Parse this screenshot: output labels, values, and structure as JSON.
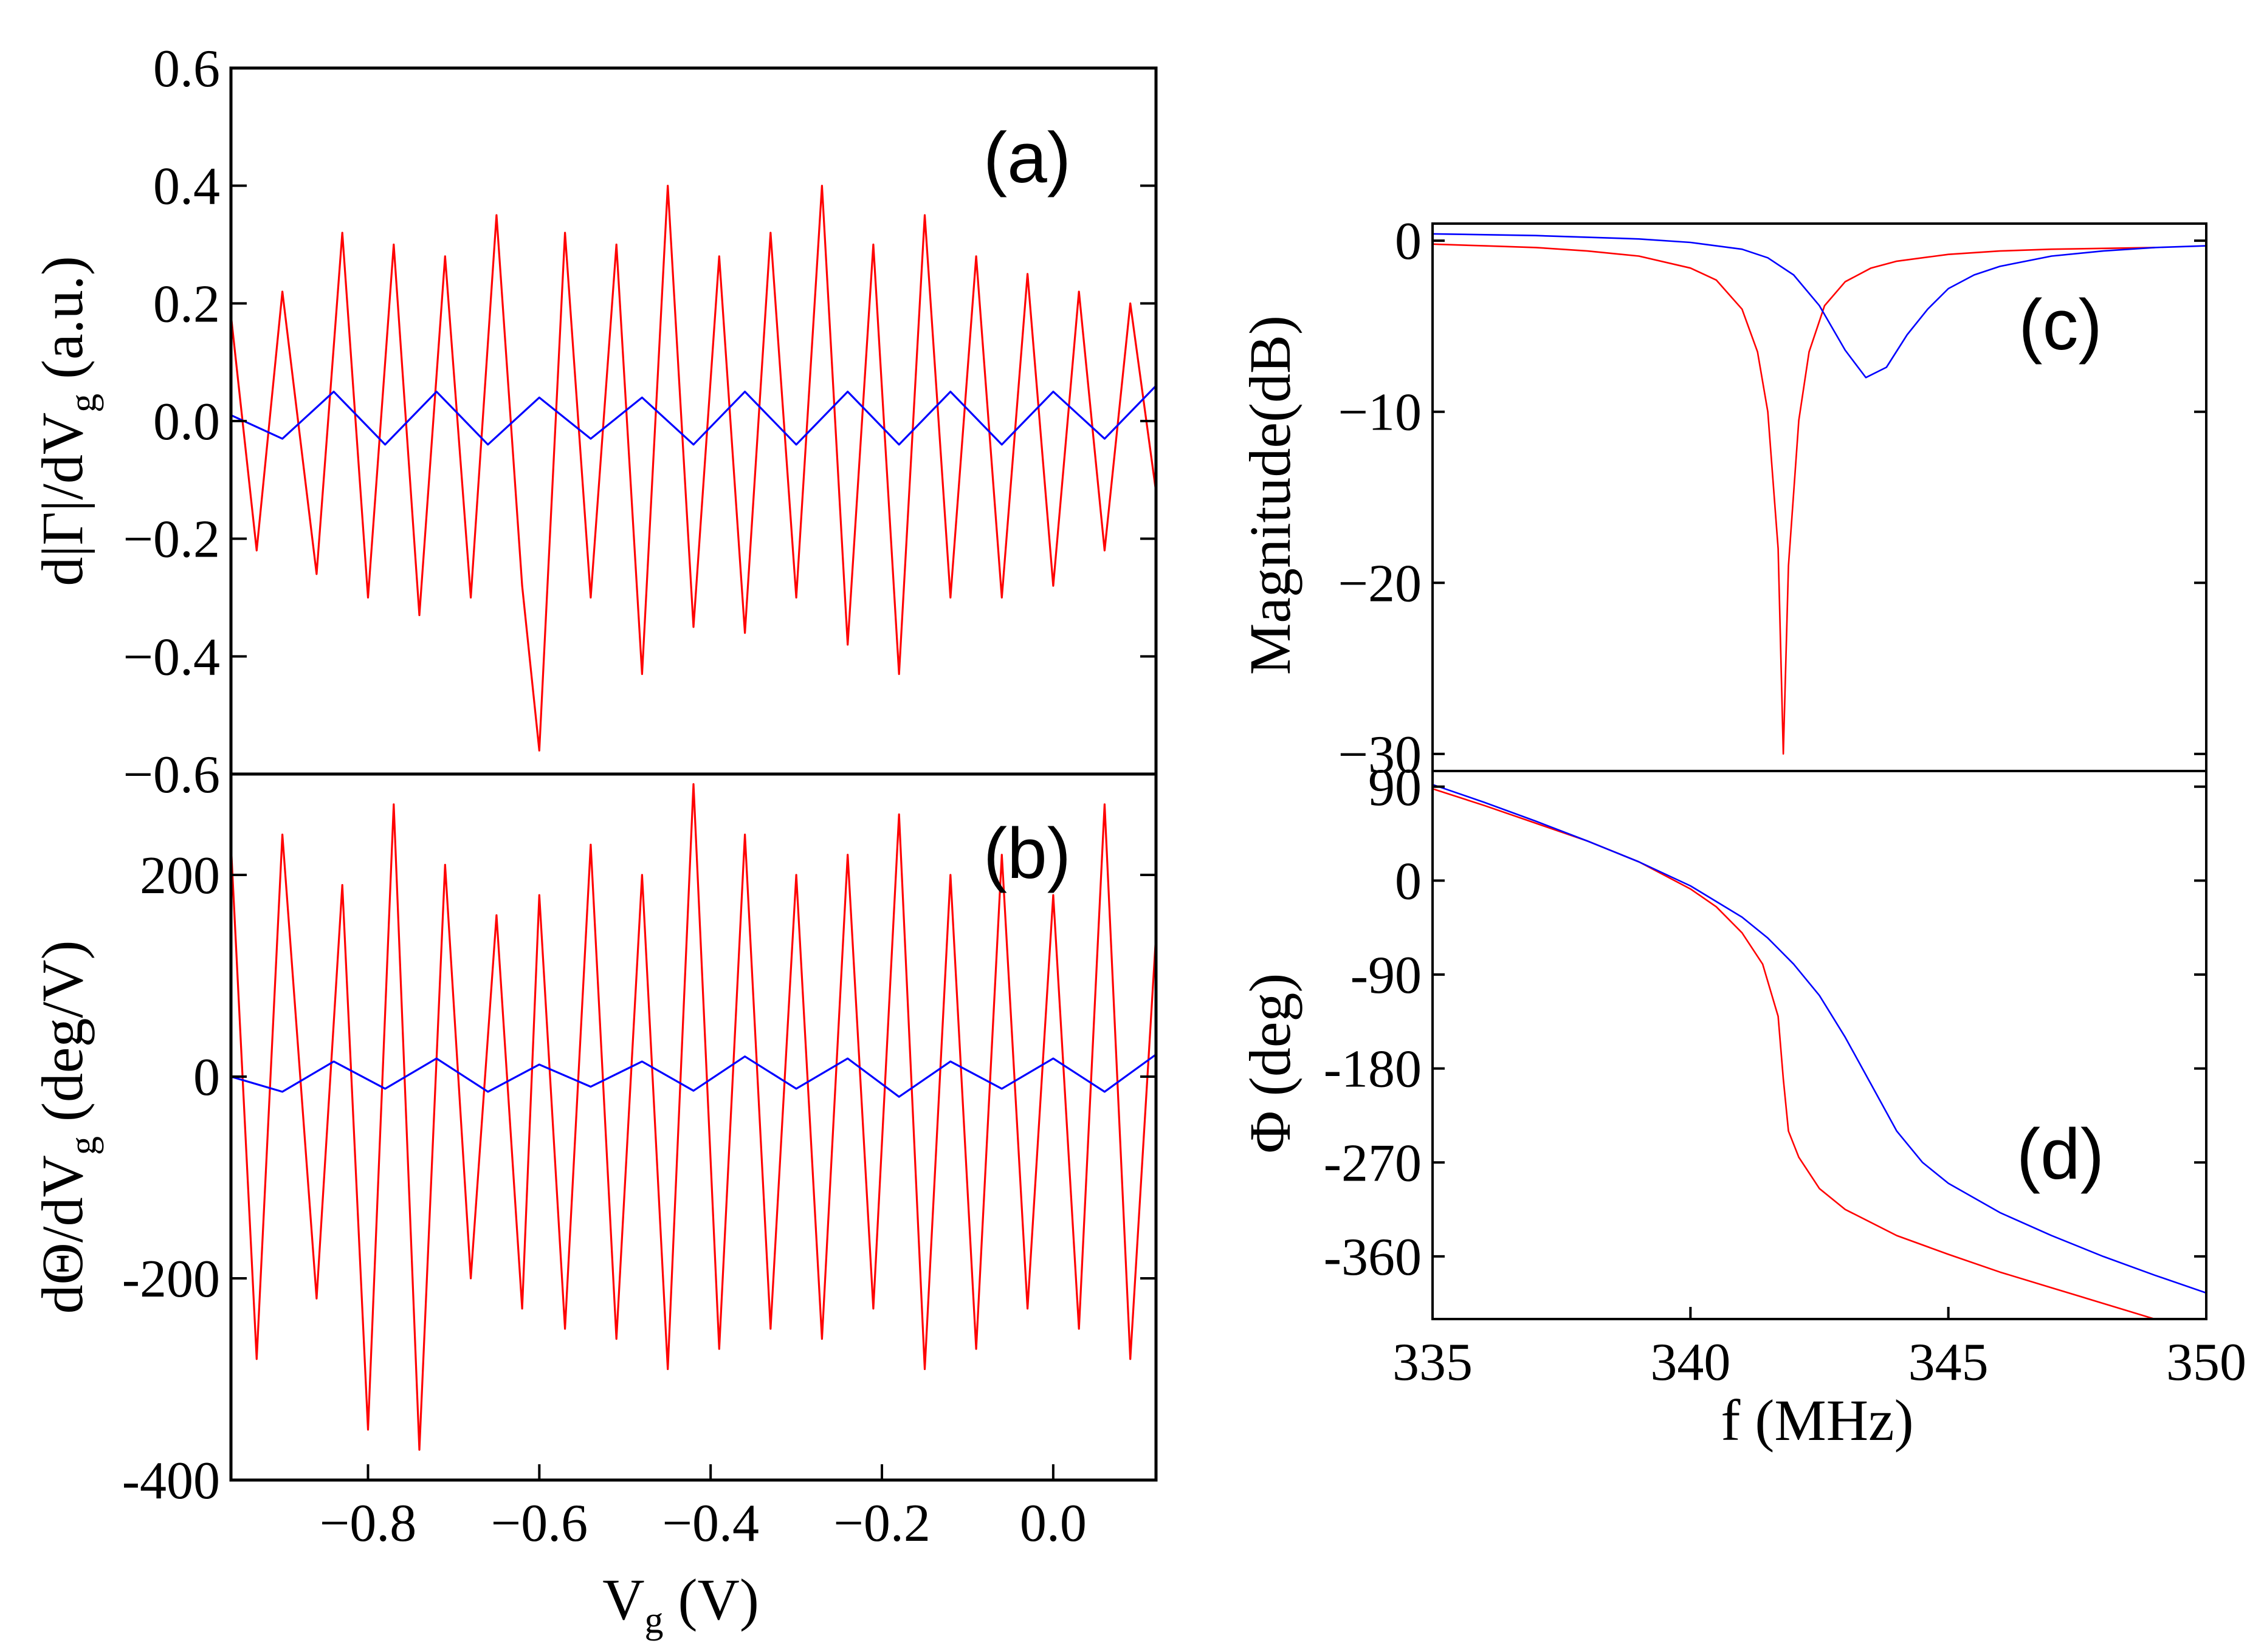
{
  "chart_data": [
    {
      "panel": "(a)",
      "type": "line",
      "ylabel": "d|Γ|/dVg (a.u.)",
      "ylabel_parts": {
        "main": "d|Γ|/dV",
        "sub": "g",
        "tail": " (a.u.)"
      },
      "xlim": [
        -0.96,
        0.12
      ],
      "ylim": [
        -0.6,
        0.6
      ],
      "yticks": [
        -0.6,
        -0.4,
        -0.2,
        0.0,
        0.2,
        0.4,
        0.6
      ],
      "ytick_labels": [
        "−0.6",
        "−0.4",
        "−0.2",
        "0.0",
        "0.2",
        "0.4",
        "0.6"
      ],
      "series": [
        {
          "name": "red",
          "color": "#ff0000",
          "description": "oscillation amplitude ~±0.3, extremes 0.40 and −0.56",
          "x": [
            -0.96,
            -0.93,
            -0.9,
            -0.86,
            -0.83,
            -0.8,
            -0.77,
            -0.74,
            -0.71,
            -0.68,
            -0.65,
            -0.62,
            -0.6,
            -0.57,
            -0.54,
            -0.51,
            -0.48,
            -0.45,
            -0.42,
            -0.39,
            -0.36,
            -0.33,
            -0.3,
            -0.27,
            -0.24,
            -0.21,
            -0.18,
            -0.15,
            -0.12,
            -0.09,
            -0.06,
            -0.03,
            0.0,
            0.03,
            0.06,
            0.09,
            0.12
          ],
          "y": [
            0.18,
            -0.22,
            0.22,
            -0.26,
            0.32,
            -0.3,
            0.3,
            -0.33,
            0.28,
            -0.3,
            0.35,
            -0.28,
            -0.56,
            0.32,
            -0.3,
            0.3,
            -0.43,
            0.4,
            -0.35,
            0.28,
            -0.36,
            0.32,
            -0.3,
            0.4,
            -0.38,
            0.3,
            -0.43,
            0.35,
            -0.3,
            0.28,
            -0.3,
            0.25,
            -0.28,
            0.22,
            -0.22,
            0.2,
            -0.12
          ]
        },
        {
          "name": "blue",
          "color": "#0000ff",
          "description": "small oscillation ~±0.06 around 0",
          "x": [
            -0.96,
            -0.9,
            -0.84,
            -0.78,
            -0.72,
            -0.66,
            -0.6,
            -0.54,
            -0.48,
            -0.42,
            -0.36,
            -0.3,
            -0.24,
            -0.18,
            -0.12,
            -0.06,
            0.0,
            0.06,
            0.12
          ],
          "y": [
            0.01,
            -0.03,
            0.05,
            -0.04,
            0.05,
            -0.04,
            0.04,
            -0.03,
            0.04,
            -0.04,
            0.05,
            -0.04,
            0.05,
            -0.04,
            0.05,
            -0.04,
            0.05,
            -0.03,
            0.06
          ]
        }
      ]
    },
    {
      "panel": "(b)",
      "type": "line",
      "ylabel": "dΘ/dVg (deg/V)",
      "ylabel_parts": {
        "main": "dΘ/dV",
        "sub": "g",
        "tail": " (deg/V)"
      },
      "xlabel": "Vg (V)",
      "xlabel_parts": {
        "main": "V",
        "sub": "g",
        "tail": " (V)"
      },
      "xlim": [
        -0.96,
        0.12
      ],
      "ylim": [
        -400,
        300
      ],
      "yticks": [
        -400,
        -200,
        0,
        200
      ],
      "ytick_labels": [
        "-400",
        "-200",
        "0",
        "200"
      ],
      "xticks": [
        -0.8,
        -0.6,
        -0.4,
        -0.2,
        0.0
      ],
      "xtick_labels": [
        "−0.8",
        "−0.6",
        "−0.4",
        "−0.2",
        "0.0"
      ],
      "series": [
        {
          "name": "red",
          "color": "#ff0000",
          "description": "oscillation ~±200, extremes 290 and −370",
          "x": [
            -0.96,
            -0.93,
            -0.9,
            -0.86,
            -0.83,
            -0.8,
            -0.77,
            -0.74,
            -0.71,
            -0.68,
            -0.65,
            -0.62,
            -0.6,
            -0.57,
            -0.54,
            -0.51,
            -0.48,
            -0.45,
            -0.42,
            -0.39,
            -0.36,
            -0.33,
            -0.3,
            -0.27,
            -0.24,
            -0.21,
            -0.18,
            -0.15,
            -0.12,
            -0.09,
            -0.06,
            -0.03,
            0.0,
            0.03,
            0.06,
            0.09,
            0.12
          ],
          "y": [
            230,
            -280,
            240,
            -220,
            190,
            -350,
            270,
            -370,
            210,
            -200,
            160,
            -230,
            180,
            -250,
            230,
            -260,
            200,
            -290,
            290,
            -270,
            240,
            -250,
            200,
            -260,
            220,
            -230,
            260,
            -290,
            200,
            -270,
            220,
            -230,
            180,
            -250,
            270,
            -280,
            140
          ]
        },
        {
          "name": "blue",
          "color": "#0000ff",
          "description": "small oscillation ~±20 around 0",
          "x": [
            -0.96,
            -0.9,
            -0.84,
            -0.78,
            -0.72,
            -0.66,
            -0.6,
            -0.54,
            -0.48,
            -0.42,
            -0.36,
            -0.3,
            -0.24,
            -0.18,
            -0.12,
            -0.06,
            0.0,
            0.06,
            0.12
          ],
          "y": [
            0,
            -15,
            15,
            -12,
            18,
            -15,
            12,
            -10,
            15,
            -14,
            20,
            -12,
            18,
            -20,
            15,
            -12,
            18,
            -15,
            22
          ]
        }
      ]
    },
    {
      "panel": "(c)",
      "type": "line",
      "ylabel": "Magnitude(dB)",
      "xlim": [
        335,
        350
      ],
      "ylim": [
        -31,
        1
      ],
      "yticks": [
        -30,
        -20,
        -10,
        0
      ],
      "ytick_labels": [
        "−30",
        "−20",
        "−10",
        "0"
      ],
      "series": [
        {
          "name": "red",
          "color": "#ff0000",
          "description": "sharp resonance dip to −30 dB at 341.8 MHz",
          "x": [
            335,
            336,
            337,
            338,
            339,
            340,
            340.5,
            341,
            341.3,
            341.5,
            341.7,
            341.8,
            341.9,
            342.1,
            342.3,
            342.6,
            343,
            343.5,
            344,
            345,
            346,
            347,
            348,
            349
          ],
          "y": [
            -0.2,
            -0.3,
            -0.4,
            -0.6,
            -0.9,
            -1.6,
            -2.3,
            -4,
            -6.5,
            -10,
            -18,
            -30,
            -19,
            -10.5,
            -6.5,
            -3.8,
            -2.4,
            -1.6,
            -1.2,
            -0.8,
            -0.6,
            -0.5,
            -0.45,
            -0.4
          ]
        },
        {
          "name": "blue",
          "color": "#0000ff",
          "description": "broad resonance dip to −8 dB at 343.4 MHz",
          "x": [
            335,
            337,
            339,
            340,
            341,
            341.5,
            342,
            342.5,
            343,
            343.4,
            343.8,
            344.2,
            344.6,
            345,
            345.5,
            346,
            347,
            348,
            349,
            350
          ],
          "y": [
            0.4,
            0.3,
            0.1,
            -0.1,
            -0.5,
            -1,
            -2,
            -3.8,
            -6.4,
            -8,
            -7.4,
            -5.5,
            -4,
            -2.8,
            -2,
            -1.5,
            -0.9,
            -0.6,
            -0.4,
            -0.3
          ]
        }
      ]
    },
    {
      "panel": "(d)",
      "type": "line",
      "ylabel": "Φ (deg)",
      "xlabel": "f (MHz)",
      "xlim": [
        335,
        350
      ],
      "ylim": [
        -420,
        105
      ],
      "yticks": [
        -360,
        -270,
        -180,
        -90,
        0,
        90
      ],
      "ytick_labels": [
        "-360",
        "-270",
        "-180",
        "-90",
        "0",
        "90"
      ],
      "xticks": [
        335,
        340,
        345,
        350
      ],
      "xtick_labels": [
        "335",
        "340",
        "345",
        "350"
      ],
      "series": [
        {
          "name": "red",
          "color": "#ff0000",
          "description": "phase with sharp drop near 341.8 MHz",
          "x": [
            335,
            336,
            337,
            338,
            339,
            340,
            340.5,
            341,
            341.4,
            341.7,
            341.8,
            341.9,
            342.1,
            342.5,
            343,
            344,
            345,
            346,
            347,
            348,
            349
          ],
          "y": [
            88,
            72,
            55,
            38,
            18,
            -8,
            -25,
            -50,
            -80,
            -130,
            -190,
            -240,
            -265,
            -295,
            -315,
            -340,
            -358,
            -375,
            -390,
            -405,
            -420
          ]
        },
        {
          "name": "blue",
          "color": "#0000ff",
          "description": "phase with gradual drop centred near 343.4 MHz",
          "x": [
            335,
            336,
            337,
            338,
            339,
            340,
            341,
            341.5,
            342,
            342.5,
            343,
            343.5,
            344,
            344.5,
            345,
            346,
            347,
            348,
            349,
            350
          ],
          "y": [
            92,
            75,
            57,
            38,
            18,
            -5,
            -35,
            -55,
            -80,
            -110,
            -150,
            -195,
            -240,
            -270,
            -290,
            -318,
            -340,
            -360,
            -378,
            -395
          ]
        }
      ]
    }
  ]
}
